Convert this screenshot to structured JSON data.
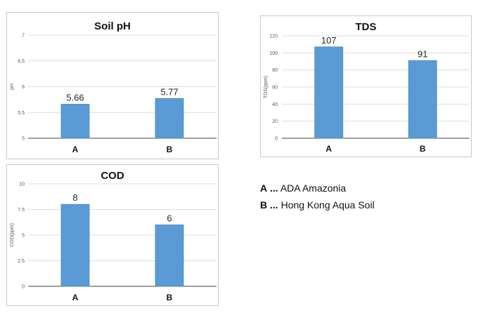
{
  "chart_data": [
    {
      "id": "ph",
      "type": "bar",
      "title": "Soil pH",
      "ylabel": "pH",
      "categories": [
        "A",
        "B"
      ],
      "values": [
        5.66,
        5.77
      ],
      "value_labels": [
        "5.66",
        "5.77"
      ],
      "ylim": [
        5,
        7
      ],
      "yticks": [
        5,
        5.5,
        6,
        6.5,
        7
      ],
      "ytick_labels": [
        "5",
        "5.5",
        "6",
        "6.5",
        "7"
      ],
      "grid": true,
      "bar_color": "#5b9bd5"
    },
    {
      "id": "tds",
      "type": "bar",
      "title": "TDS",
      "ylabel": "TDS(ppm)",
      "categories": [
        "A",
        "B"
      ],
      "values": [
        107,
        91
      ],
      "value_labels": [
        "107",
        "91"
      ],
      "ylim": [
        0,
        120
      ],
      "yticks": [
        0,
        20,
        40,
        60,
        80,
        100,
        120
      ],
      "ytick_labels": [
        "0",
        "20",
        "40",
        "60",
        "80",
        "100",
        "120"
      ],
      "grid": true,
      "bar_color": "#5b9bd5"
    },
    {
      "id": "cod",
      "type": "bar",
      "title": "COD",
      "ylabel": "COD(ppm)",
      "categories": [
        "A",
        "B"
      ],
      "values": [
        8,
        6
      ],
      "value_labels": [
        "8",
        "6"
      ],
      "ylim": [
        0,
        10
      ],
      "yticks": [
        0,
        2.5,
        5,
        7.5,
        10
      ],
      "ytick_labels": [
        "0",
        "2.5",
        "5",
        "7.5",
        "10"
      ],
      "grid": true,
      "bar_color": "#5b9bd5"
    }
  ],
  "legend": [
    {
      "key": "A",
      "sep": "...",
      "text": "ADA Amazonia"
    },
    {
      "key": "B",
      "sep": "...",
      "text": "Hong Kong Aqua Soil"
    }
  ]
}
